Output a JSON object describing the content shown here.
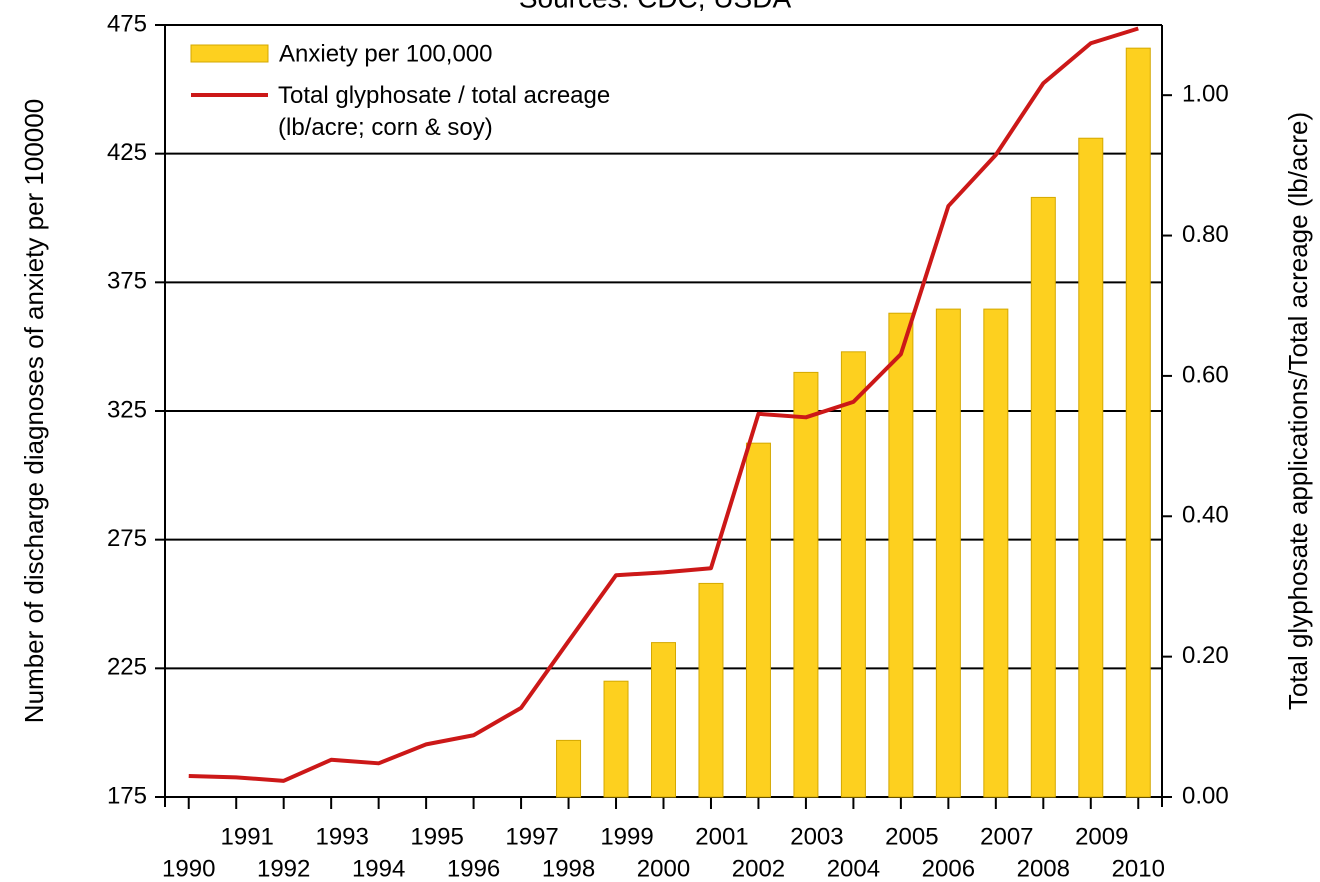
{
  "chart_data": {
    "type": "bar",
    "title": "Sources: CDC, USDA",
    "y_label": "Number of discharge diagnoses of anxiety per 100000",
    "y2_label": "Total glyphosate applications/Total acreage (lb/acre)",
    "categories": [
      "1990",
      "1991",
      "1992",
      "1993",
      "1994",
      "1995",
      "1996",
      "1997",
      "1998",
      "1999",
      "2000",
      "2001",
      "2002",
      "2003",
      "2004",
      "2005",
      "2006",
      "2007",
      "2008",
      "2009",
      "2010"
    ],
    "series": [
      {
        "name": "Anxiety per 100,000",
        "type": "bar",
        "axis": "y",
        "color": "#fdd01f",
        "values": [
          null,
          null,
          null,
          null,
          null,
          null,
          null,
          null,
          197,
          220,
          235,
          258,
          312.5,
          340,
          348,
          363,
          364.6,
          364.6,
          408,
          431,
          466
        ]
      },
      {
        "name": "Total glyphosate / total acreage (lb/acre; corn & soy)",
        "type": "line",
        "axis": "y2",
        "color": "#cc1818",
        "values": [
          0.03,
          0.028,
          0.023,
          0.053,
          0.048,
          0.075,
          0.088,
          0.127,
          0.222,
          0.316,
          0.32,
          0.326,
          0.546,
          0.541,
          0.563,
          0.631,
          0.842,
          0.915,
          1.017,
          1.074,
          1.095
        ]
      }
    ],
    "ylim": [
      175,
      475
    ],
    "yticks": [
      175,
      225,
      275,
      325,
      375,
      425,
      475
    ],
    "y2lim": [
      0,
      1.1
    ],
    "y2ticks": [
      {
        "value": 0,
        "label": "0.00"
      },
      {
        "value": 0.2,
        "label": "0.20"
      },
      {
        "value": 0.4,
        "label": "0.40"
      },
      {
        "value": 0.6,
        "label": "0.60"
      },
      {
        "value": 0.8,
        "label": "0.80"
      },
      {
        "value": 1,
        "label": "1.00"
      }
    ],
    "grid": true,
    "legend": "upper left"
  }
}
